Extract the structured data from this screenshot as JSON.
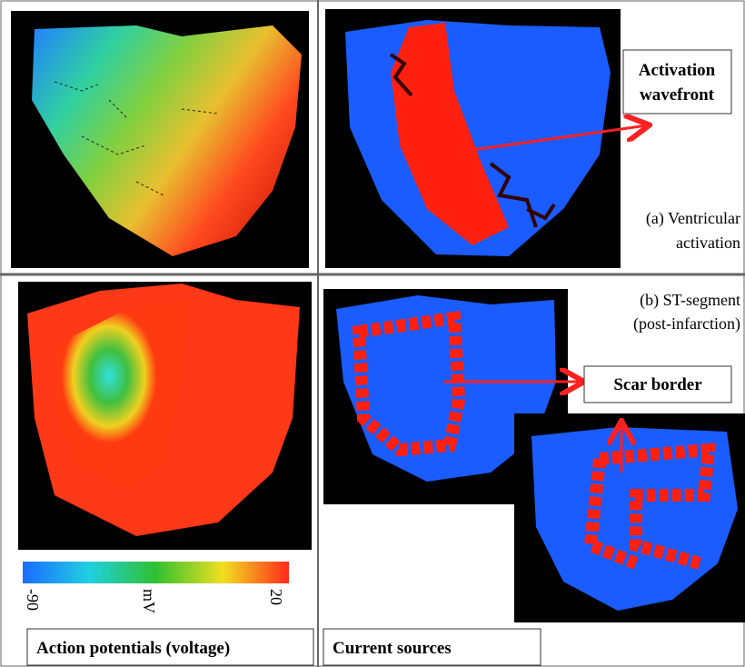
{
  "panel_a": {
    "wavefront_label": [
      "Activation",
      "wavefront"
    ],
    "caption": [
      "(a) Ventricular",
      "activation"
    ]
  },
  "panel_b": {
    "caption": [
      "(b)  ST-segment",
      "(post-infarction)"
    ],
    "scar_label": "Scar border"
  },
  "colorbar": {
    "min_label": "-90",
    "unit_label": "mV",
    "max_label": "20"
  },
  "footer": {
    "left_caption": "Action potentials (voltage)",
    "right_caption": "Current sources"
  }
}
